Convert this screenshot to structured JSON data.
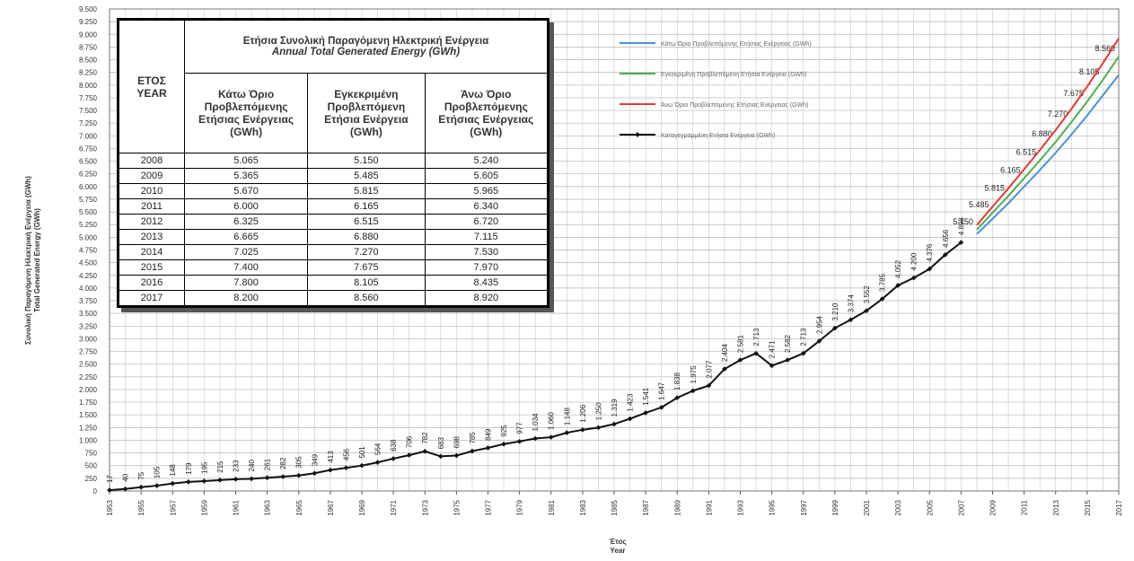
{
  "chart_data": {
    "type": "line",
    "y_label": [
      "Συνολική Παραγόμενη Ηλεκτρική Ενέργεια (GWh)",
      "Total Generated Energy (GWh)"
    ],
    "x_label": [
      "Έτος",
      "Year"
    ],
    "xlim": [
      1953,
      2017
    ],
    "xticks": [
      1953,
      1955,
      1957,
      1959,
      1961,
      1963,
      1965,
      1967,
      1969,
      1971,
      1973,
      1975,
      1977,
      1979,
      1981,
      1983,
      1985,
      1987,
      1989,
      1991,
      1993,
      1995,
      1997,
      1999,
      2001,
      2003,
      2005,
      2007,
      2009,
      2011,
      2013,
      2015,
      2017
    ],
    "ylim": [
      0,
      9500
    ],
    "yticks": [
      0,
      250,
      500,
      750,
      {
        "value": 1000,
        "label": "1.000"
      },
      {
        "value": 1250,
        "label": "1.250"
      },
      {
        "value": 1500,
        "label": "1.500"
      },
      {
        "value": 1750,
        "label": "1.750"
      },
      {
        "value": 2000,
        "label": "2.000"
      },
      {
        "value": 2250,
        "label": "2.250"
      },
      {
        "value": 2500,
        "label": "2.500"
      },
      {
        "value": 2750,
        "label": "2.750"
      },
      {
        "value": 3000,
        "label": "3.000"
      },
      {
        "value": 3250,
        "label": "3.250"
      },
      {
        "value": 3500,
        "label": "3.500"
      },
      {
        "value": 3750,
        "label": "3.750"
      },
      {
        "value": 4000,
        "label": "4.000"
      },
      {
        "value": 4250,
        "label": "4.250"
      },
      {
        "value": 4500,
        "label": "4.500"
      },
      {
        "value": 4750,
        "label": "4.750"
      },
      {
        "value": 5000,
        "label": "5.000"
      },
      {
        "value": 5250,
        "label": "5.250"
      },
      {
        "value": 5500,
        "label": "5.500"
      },
      {
        "value": 5750,
        "label": "5.750"
      },
      {
        "value": 6000,
        "label": "6.000"
      },
      {
        "value": 6250,
        "label": "6.250"
      },
      {
        "value": 6500,
        "label": "6.500"
      },
      {
        "value": 6750,
        "label": "6.750"
      },
      {
        "value": 7000,
        "label": "7.000"
      },
      {
        "value": 7250,
        "label": "7.250"
      },
      {
        "value": 7500,
        "label": "7.500"
      },
      {
        "value": 7750,
        "label": "7.750"
      },
      {
        "value": 8000,
        "label": "8.000"
      },
      {
        "value": 8250,
        "label": "8.250"
      },
      {
        "value": 8500,
        "label": "8.500"
      },
      {
        "value": 8750,
        "label": "8.750"
      },
      {
        "value": 9000,
        "label": "9.000"
      },
      {
        "value": 9250,
        "label": "9.250"
      },
      {
        "value": 9500,
        "label": "9.500"
      }
    ],
    "grid": true,
    "series": [
      {
        "name": "Κάτω Όριο Προβλεπόμενης Ετήσιας Ενέργειας (GWh)",
        "color": "#4a90d9",
        "x": [
          2008,
          2009,
          2010,
          2011,
          2012,
          2013,
          2014,
          2015,
          2016,
          2017
        ],
        "values": [
          5065,
          5365,
          5670,
          6000,
          6325,
          6665,
          7025,
          7400,
          7800,
          8200
        ],
        "value_labels": [
          "5.065",
          "5.365",
          "5.670",
          "6.000",
          "6.325",
          "6.665",
          "7.025",
          "7.400",
          "7.800",
          "8.200"
        ]
      },
      {
        "name": "Εγκεκριμένη Προβλεπόμενη Ετήσια Ενέργεια (GWh)",
        "color": "#4caf50",
        "x": [
          2008,
          2009,
          2010,
          2011,
          2012,
          2013,
          2014,
          2015,
          2016,
          2017
        ],
        "values": [
          5150,
          5485,
          5815,
          6165,
          6515,
          6880,
          7270,
          7675,
          8105,
          8560
        ],
        "value_labels": [
          "5.150",
          "5.485",
          "5.815",
          "6.165",
          "6.515",
          "6.880",
          "7.270",
          "7.675",
          "8.105",
          "8.560"
        ],
        "show_labels": true
      },
      {
        "name": "Άνω Όριο Προβλεπόμενης Ετήσιας Ενέργειας (GWh)",
        "color": "#e53935",
        "x": [
          2008,
          2009,
          2010,
          2011,
          2012,
          2013,
          2014,
          2015,
          2016,
          2017
        ],
        "values": [
          5240,
          5605,
          5965,
          6340,
          6720,
          7115,
          7530,
          7970,
          8435,
          8920
        ],
        "value_labels": [
          "5.240",
          "5.605",
          "5.965",
          "6.340",
          "6.720",
          "7.115",
          "7.530",
          "7.970",
          "8.435",
          "8.920"
        ]
      },
      {
        "name": "Καταγεγραμμένη Ετήσια Ενέργεια (GWh)",
        "color": "#111111",
        "markers": true,
        "show_labels": true,
        "label_rotate": true,
        "x": [
          1953,
          1954,
          1955,
          1956,
          1957,
          1958,
          1959,
          1960,
          1961,
          1962,
          1963,
          1964,
          1965,
          1966,
          1967,
          1968,
          1969,
          1970,
          1971,
          1972,
          1973,
          1974,
          1975,
          1976,
          1977,
          1978,
          1979,
          1980,
          1981,
          1982,
          1983,
          1984,
          1985,
          1986,
          1987,
          1988,
          1989,
          1990,
          1991,
          1992,
          1993,
          1994,
          1995,
          1996,
          1997,
          1998,
          1999,
          2000,
          2001,
          2002,
          2003,
          2004,
          2005,
          2006,
          2007
        ],
        "values": [
          17,
          40,
          75,
          105,
          148,
          179,
          195,
          215,
          233,
          240,
          261,
          282,
          305,
          349,
          413,
          456,
          501,
          564,
          638,
          706,
          782,
          683,
          698,
          785,
          849,
          925,
          977,
          1034,
          1060,
          1148,
          1206,
          1250,
          1319,
          1423,
          1541,
          1647,
          1838,
          1975,
          2077,
          2404,
          2581,
          2713,
          2471,
          2582,
          2713,
          2954,
          3210,
          3374,
          3552,
          3785,
          4052,
          4200,
          4376,
          4656,
          4898
        ],
        "value_labels": [
          "17",
          "40",
          "75",
          "105",
          "148",
          "179",
          "195",
          "215",
          "233",
          "240",
          "261",
          "282",
          "305",
          "349",
          "413",
          "456",
          "501",
          "564",
          "638",
          "706",
          "782",
          "683",
          "698",
          "785",
          "849",
          "925",
          "977",
          "1.034",
          "1.060",
          "1.148",
          "1.206",
          "1.250",
          "1.319",
          "1.423",
          "1.541",
          "1.647",
          "1.838",
          "1.975",
          "2.077",
          "2.404",
          "2.581",
          "2.713",
          "2.471",
          "2.582",
          "2.713",
          "2.954",
          "3.210",
          "3.374",
          "3.552",
          "3.785",
          "4.052",
          "4.200",
          "4.376",
          "4.656",
          "4.898"
        ]
      }
    ]
  },
  "table": {
    "year_header": [
      "ΕΤΟΣ",
      "YEAR"
    ],
    "title": "Ετήσια Συνολική Παραγόμενη Ηλεκτρική Ενέργεια",
    "subtitle": "Annual Total Generated Energy (GWh)",
    "columns": [
      "Κάτω Όριο Προβλεπόμενης Ετήσιας Ενέργειας (GWh)",
      "Εγκεκριμένη Προβλεπόμενη Ετήσια Ενέργεια (GWh)",
      "Άνω Όριο Προβλεπόμενης Ετήσιας Ενέργειας (GWh)"
    ]
  }
}
